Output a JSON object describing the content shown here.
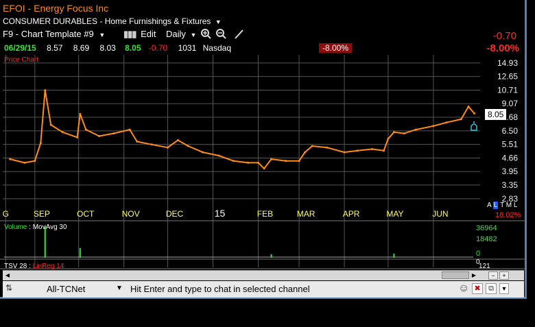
{
  "header": {
    "symbol_title": "EFOI - Energy Focus Inc",
    "industry": "CONSUMER DURABLES - Home Furnishings & Fixtures",
    "template": "F9 - Chart Template #9",
    "edit_label": "Edit",
    "period": "Daily",
    "net_change": "-0.70",
    "pct_change": "-8.00%"
  },
  "quote": {
    "date": "06/29/15",
    "open": "8.57",
    "high": "8.69",
    "low": "8.03",
    "last": "8.05",
    "change": "-0.70",
    "volume": "1031",
    "exchange": "Nasdaq",
    "pct_badge": "-8.00%"
  },
  "price_chart": {
    "label": "Price Chart",
    "last_price_tag": "8.05",
    "side_pct": "18.02%",
    "scale_letters": [
      "A",
      "L",
      "T",
      "M",
      "L"
    ]
  },
  "volume_panel": {
    "label": "Volume",
    "ma_label": "MovAvg 30",
    "scale": [
      "36964",
      "18482",
      "0"
    ]
  },
  "tsv_panel": {
    "label": "TSV 28",
    "linreg_label": "LinReg 14",
    "scale": [
      "0",
      "121"
    ]
  },
  "chat": {
    "channel": "All-TCNet",
    "message": "Hit Enter and type to chat in selected channel"
  },
  "colors": {
    "price_line": "#ff8c1a",
    "grid": "#555555",
    "axis_text": "#f0f0f0",
    "down": "#ff2a2a",
    "up": "#33e633"
  },
  "chart_data": {
    "type": "line",
    "series_name": "",
    "y_ticks": [
      "14.93",
      "12.65",
      "10.71",
      "9.07",
      "7.68",
      "6.50",
      "5.51",
      "4.66",
      "3.95",
      "3.35",
      "2.83"
    ],
    "x_ticks": [
      "G",
      "SEP",
      "OCT",
      "NOV",
      "DEC",
      "15",
      "FEB",
      "MAR",
      "APR",
      "MAY",
      "JUN"
    ],
    "log_scale": true,
    "ylim": [
      2.6,
      16.5
    ],
    "x": [
      "2014-08-15",
      "2014-08-25",
      "2014-09-01",
      "2014-09-05",
      "2014-09-08",
      "2014-09-12",
      "2014-09-20",
      "2014-09-30",
      "2014-10-02",
      "2014-10-06",
      "2014-10-15",
      "2014-10-25",
      "2014-11-05",
      "2014-11-10",
      "2014-11-20",
      "2014-12-01",
      "2014-12-08",
      "2014-12-15",
      "2014-12-25",
      "2015-01-05",
      "2015-01-15",
      "2015-01-25",
      "2015-02-01",
      "2015-02-05",
      "2015-02-10",
      "2015-02-20",
      "2015-03-01",
      "2015-03-05",
      "2015-03-10",
      "2015-03-20",
      "2015-04-01",
      "2015-04-10",
      "2015-04-20",
      "2015-04-28",
      "2015-05-01",
      "2015-05-05",
      "2015-05-12",
      "2015-05-20",
      "2015-06-01",
      "2015-06-10",
      "2015-06-20",
      "2015-06-25",
      "2015-06-29"
    ],
    "y": [
      4.6,
      4.4,
      4.5,
      5.6,
      10.7,
      7.0,
      6.4,
      6.0,
      8.0,
      6.6,
      6.1,
      6.3,
      6.6,
      5.7,
      5.5,
      5.3,
      5.8,
      5.4,
      5.0,
      4.8,
      4.5,
      4.4,
      4.4,
      4.1,
      4.6,
      4.5,
      4.5,
      5.0,
      5.4,
      5.3,
      5.0,
      5.1,
      5.2,
      5.1,
      5.9,
      6.4,
      6.3,
      6.6,
      6.9,
      7.2,
      7.5,
      8.75,
      8.05
    ]
  }
}
